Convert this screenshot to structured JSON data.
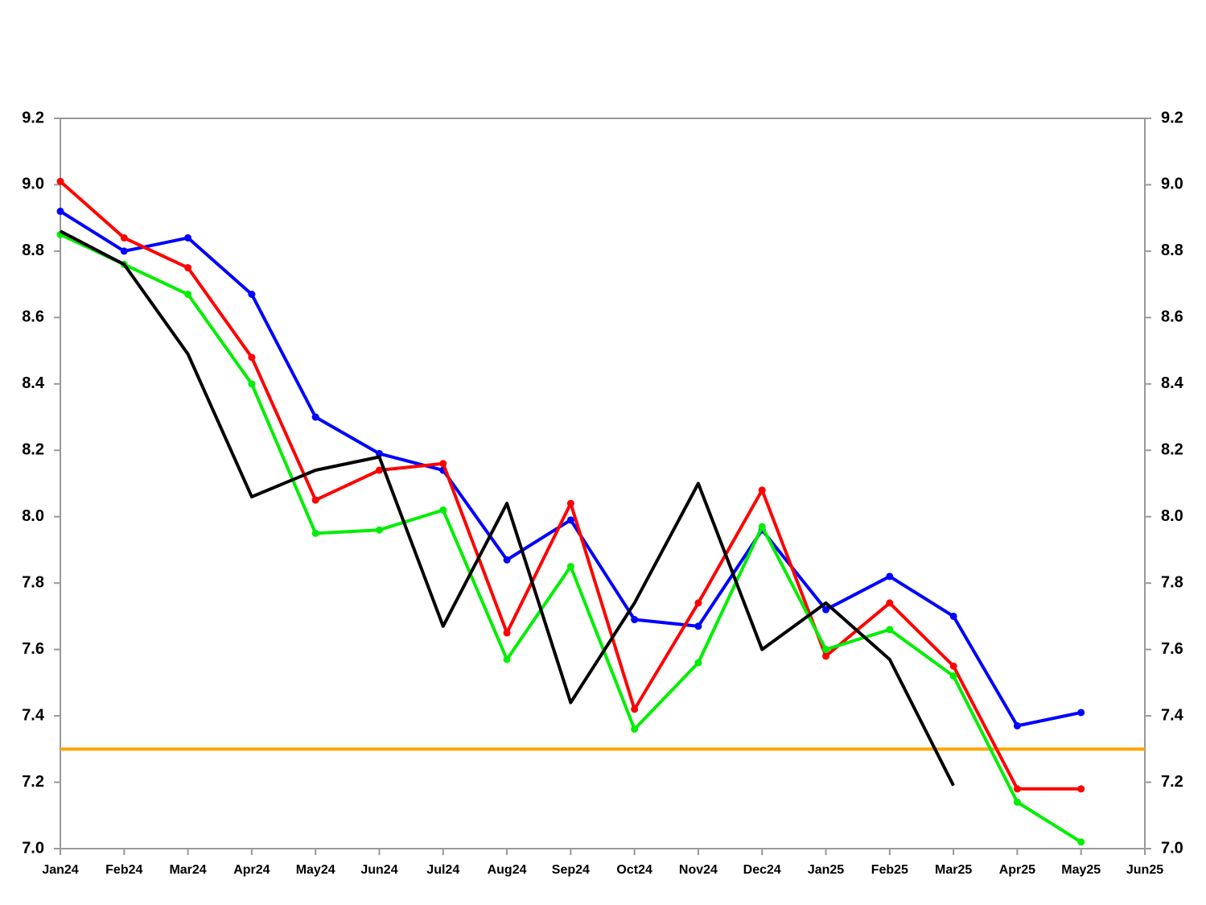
{
  "chart_data": {
    "type": "line",
    "categories": [
      "Jan24",
      "Feb24",
      "Mar24",
      "Apr24",
      "May24",
      "Jun24",
      "Jul24",
      "Aug24",
      "Sep24",
      "Oct24",
      "Nov24",
      "Dec24",
      "Jan25",
      "Feb25",
      "Mar25",
      "Apr25",
      "May25",
      "Jun25"
    ],
    "series": [
      {
        "color": "#0000ff",
        "marker": true,
        "values": [
          8.92,
          8.8,
          8.84,
          8.67,
          8.3,
          8.19,
          8.14,
          7.87,
          7.99,
          7.69,
          7.67,
          7.96,
          7.72,
          7.82,
          7.7,
          7.37,
          7.41,
          null
        ]
      },
      {
        "color": "#ff0000",
        "marker": true,
        "values": [
          9.01,
          8.84,
          8.75,
          8.48,
          8.05,
          8.14,
          8.16,
          7.65,
          8.04,
          7.42,
          7.74,
          8.08,
          7.58,
          7.74,
          7.55,
          7.18,
          7.18,
          null
        ]
      },
      {
        "color": "#00ee00",
        "marker": true,
        "values": [
          8.85,
          8.76,
          8.67,
          8.4,
          7.95,
          7.96,
          8.02,
          7.57,
          7.85,
          7.36,
          7.56,
          7.97,
          7.6,
          7.66,
          7.52,
          7.14,
          7.02,
          null
        ]
      },
      {
        "color": "#000000",
        "marker": false,
        "values": [
          8.86,
          8.76,
          8.49,
          8.06,
          8.14,
          8.18,
          7.67,
          8.04,
          7.44,
          7.74,
          8.1,
          7.6,
          7.74,
          7.57,
          7.19,
          null,
          null,
          null
        ]
      }
    ],
    "hlines": [
      {
        "value": 7.3,
        "color": "#ffa500"
      }
    ],
    "ylim": [
      7.0,
      9.2
    ],
    "yticks": [
      {
        "value": 7,
        "label": "7.0"
      },
      7.2,
      7.4,
      7.6,
      7.8,
      {
        "value": 8,
        "label": "8.0"
      },
      8.2,
      8.4,
      8.6,
      8.8,
      {
        "value": 9,
        "label": "9.0"
      },
      9.2
    ],
    "y2lim": [
      7.0,
      9.2
    ],
    "y2ticks": [
      {
        "value": 7,
        "label": "7.0"
      },
      7.2,
      7.4,
      7.6,
      7.8,
      {
        "value": 8,
        "label": "8.0"
      },
      8.2,
      8.4,
      8.6,
      8.8,
      {
        "value": 9,
        "label": "9.0"
      },
      9.2
    ],
    "grid": false
  }
}
